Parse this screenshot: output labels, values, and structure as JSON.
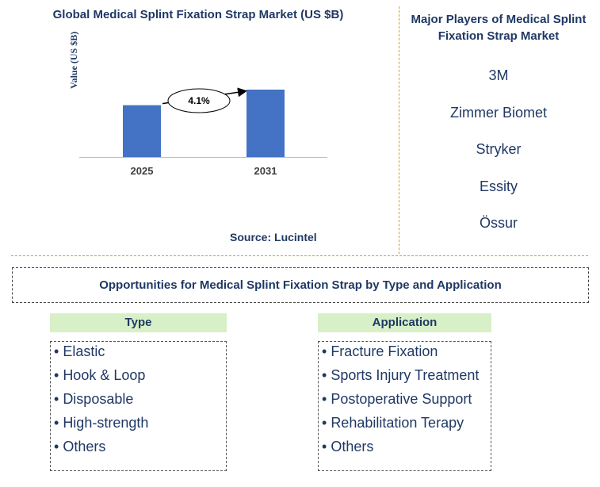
{
  "chart": {
    "title": "Global Medical Splint Fixation Strap Market (US $B)",
    "source": "Source: Lucintel"
  },
  "chart_data": {
    "type": "bar",
    "categories": [
      "2025",
      "2031"
    ],
    "values": [
      1.0,
      1.3
    ],
    "ylabel": "Value (US $B)",
    "xlabel": "",
    "annotation": "4.1%",
    "bar_color": "#4472c4",
    "grid": false
  },
  "players": {
    "title": "Major Players of Medical Splint Fixation Strap Market",
    "items": [
      "3M",
      "Zimmer Biomet",
      "Stryker",
      "Essity",
      "Össur"
    ]
  },
  "opportunities": {
    "title": "Opportunities for Medical Splint Fixation Strap by Type and Application"
  },
  "type_section": {
    "heading": "Type",
    "items": [
      "Elastic",
      "Hook & Loop",
      "Disposable",
      "High-strength",
      "Others"
    ]
  },
  "application_section": {
    "heading": "Application",
    "items": [
      "Fracture Fixation",
      "Sports Injury Treatment",
      "Postoperative Support",
      "Rehabilitation Terapy",
      "Others"
    ]
  },
  "colors": {
    "title": "#1f3864",
    "accent_line": "#c9a227",
    "header_bg": "#d8f0c8"
  }
}
